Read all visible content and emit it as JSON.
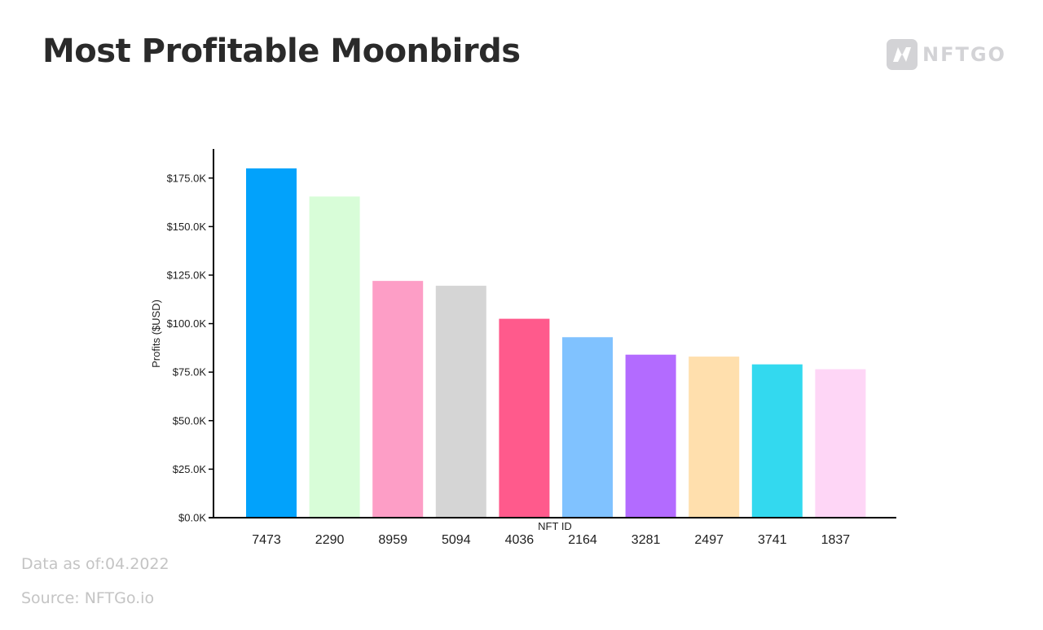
{
  "header": {
    "title": "Most Profitable Moonbirds",
    "logo_text": "NFTGO"
  },
  "footer": {
    "date_note": "Data as of:04.2022",
    "source_note": "Source: NFTGo.io"
  },
  "chart_data": {
    "type": "bar",
    "categories": [
      "7473",
      "2290",
      "8959",
      "5094",
      "4036",
      "2164",
      "3281",
      "2497",
      "3741",
      "1837"
    ],
    "values": [
      180000,
      165500,
      122000,
      119500,
      102500,
      93000,
      84000,
      83000,
      79000,
      76500
    ],
    "colors": [
      "#02a2fb",
      "#d8fdd8",
      "#fd9ec6",
      "#d5d5d5",
      "#ff5a8c",
      "#80c2ff",
      "#b36bff",
      "#ffdfad",
      "#33d9ef",
      "#fed6f6"
    ],
    "xlabel": "NFT ID",
    "ylabel": "Profits ($USD)",
    "ylim": [
      0,
      190000
    ],
    "yticks": [
      0,
      25000,
      50000,
      75000,
      100000,
      125000,
      150000,
      175000
    ],
    "ytick_labels": [
      "$0.0K",
      "$25.0K",
      "$50.0K",
      "$75.0K",
      "$100.0K",
      "$125.0K",
      "$150.0K",
      "$175.0K"
    ],
    "grid": false,
    "legend": "none"
  }
}
